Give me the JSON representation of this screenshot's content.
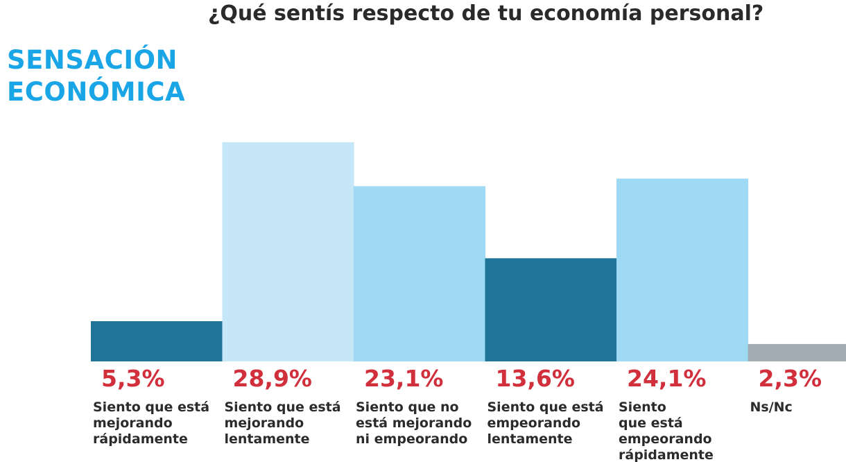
{
  "header": {
    "question": "¿Qué sentís respecto de tu economía personal?",
    "section_title_line1": "SENSACIÓN",
    "section_title_line2": "ECONÓMICA"
  },
  "chart_data": {
    "type": "bar",
    "title": "¿Qué sentís respecto de tu economía personal?",
    "xlabel": "",
    "ylabel": "",
    "ylim": [
      0,
      28.9
    ],
    "grid": false,
    "legend": "none",
    "categories": [
      "Siento que está\nmejorando\nrápidamente",
      "Siento que está\nmejorando\nlentamente",
      "Siento que no\nestá mejorando\nni empeorando",
      "Siento que está\nempeorando\nlentamente",
      "Siento\nque está\nempeorando\nrápidamente",
      "Ns/Nc"
    ],
    "values": [
      5.3,
      28.9,
      23.1,
      13.6,
      24.1,
      2.3
    ],
    "value_labels": [
      "5,3%",
      "28,9%",
      "23,1%",
      "13,6%",
      "24,1%",
      "2,3%"
    ],
    "colors": [
      "#1f7499",
      "#c5e7f8",
      "#9fdaf5",
      "#1f7499",
      "#9fdaf5",
      "#a3adb4"
    ]
  },
  "colors": {
    "title_accent": "#1aa6e6",
    "percent_text": "#d12f3c",
    "label_text": "#2b2b2b"
  }
}
